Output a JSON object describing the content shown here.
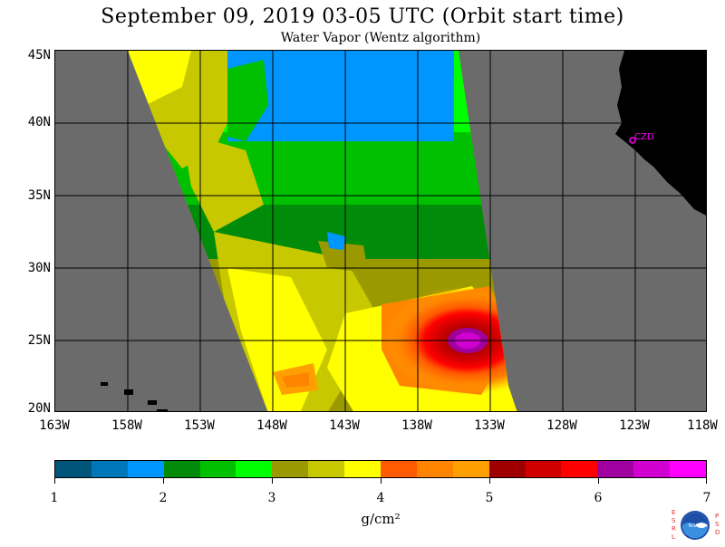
{
  "title": "September 09, 2019  03-05 UTC  (Orbit start time)",
  "subtitle": "Water Vapor (Wentz algorithm)",
  "map": {
    "lat_labels": [
      "45N",
      "40N",
      "35N",
      "30N",
      "25N",
      "20N"
    ],
    "lon_labels": [
      "163W",
      "158W",
      "153W",
      "148W",
      "143W",
      "138W",
      "133W",
      "128W",
      "123W",
      "118W"
    ],
    "city_label": "CZD",
    "lat_range": [
      20,
      45
    ],
    "lon_range": [
      -163,
      -118
    ],
    "background_color": "#6b6b6b",
    "land_color": "#000000"
  },
  "colorbar": {
    "tick_labels": [
      "1",
      "2",
      "3",
      "4",
      "5",
      "6",
      "7"
    ],
    "range": [
      1,
      7
    ],
    "colors": [
      "#00567a",
      "#0077b8",
      "#0096ff",
      "#008c0a",
      "#00c000",
      "#00ff00",
      "#9a9a00",
      "#c8c800",
      "#ffff00",
      "#ff5a00",
      "#ff8400",
      "#ffa000",
      "#9e0000",
      "#d00000",
      "#ff0000",
      "#a000a0",
      "#d000d0",
      "#ff00ff"
    ],
    "units": "g/cm²"
  },
  "logo": {
    "left_letters": "ESRL",
    "right_letters": "PSD",
    "center_text": "NOAA"
  }
}
